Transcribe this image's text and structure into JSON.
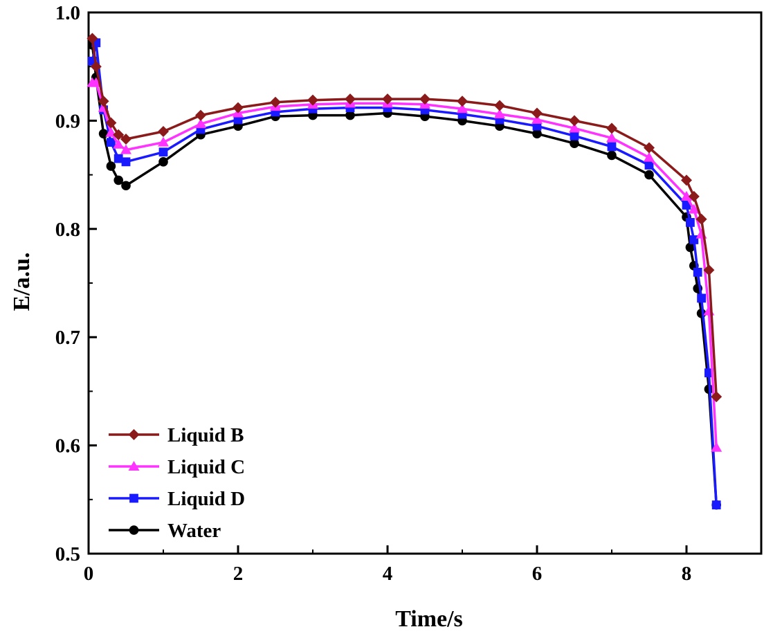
{
  "chart_data": {
    "type": "line",
    "title": "",
    "xlabel": "Time/s",
    "ylabel": "E/a.u.",
    "xlim": [
      0,
      9
    ],
    "ylim": [
      0.5,
      1.0
    ],
    "xticks": [
      0,
      2,
      4,
      6,
      8
    ],
    "yticks": [
      0.5,
      0.6,
      0.7,
      0.8,
      0.9,
      1.0
    ],
    "xtick_labels": [
      "0",
      "2",
      "4",
      "6",
      "8"
    ],
    "ytick_labels": [
      "0.5",
      "0.6",
      "0.7",
      "0.8",
      "0.9",
      "1.0"
    ],
    "grid": false,
    "legend_position": "bottom-left",
    "series": [
      {
        "name": "Liquid B",
        "color": "#8B1A1A",
        "marker": "diamond",
        "x": [
          0.05,
          0.1,
          0.2,
          0.3,
          0.4,
          0.5,
          1.0,
          1.5,
          2.0,
          2.5,
          3.0,
          3.5,
          4.0,
          4.5,
          5.0,
          5.5,
          6.0,
          6.5,
          7.0,
          7.5,
          8.0,
          8.1,
          8.2,
          8.3,
          8.4
        ],
        "y": [
          0.976,
          0.95,
          0.918,
          0.898,
          0.887,
          0.883,
          0.89,
          0.905,
          0.912,
          0.917,
          0.919,
          0.92,
          0.92,
          0.92,
          0.918,
          0.914,
          0.907,
          0.9,
          0.893,
          0.875,
          0.845,
          0.83,
          0.809,
          0.762,
          0.645
        ]
      },
      {
        "name": "Liquid C",
        "color": "#FF33FF",
        "marker": "triangle",
        "x": [
          0.05,
          0.1,
          0.2,
          0.3,
          0.4,
          0.5,
          1.0,
          1.5,
          2.0,
          2.5,
          3.0,
          3.5,
          4.0,
          4.5,
          5.0,
          5.5,
          6.0,
          6.5,
          7.0,
          7.5,
          8.0,
          8.1,
          8.2,
          8.3,
          8.4
        ],
        "y": [
          0.935,
          0.935,
          0.912,
          0.889,
          0.878,
          0.873,
          0.88,
          0.897,
          0.907,
          0.913,
          0.915,
          0.916,
          0.916,
          0.915,
          0.911,
          0.906,
          0.901,
          0.893,
          0.884,
          0.866,
          0.83,
          0.818,
          0.795,
          0.724,
          0.598
        ]
      },
      {
        "name": "Liquid D",
        "color": "#1A1AFF",
        "marker": "square",
        "x": [
          0.05,
          0.1,
          0.2,
          0.3,
          0.4,
          0.5,
          1.0,
          1.5,
          2.0,
          2.5,
          3.0,
          3.5,
          4.0,
          4.5,
          5.0,
          5.5,
          6.0,
          6.5,
          7.0,
          7.5,
          8.0,
          8.05,
          8.1,
          8.15,
          8.2,
          8.3,
          8.4
        ],
        "y": [
          0.955,
          0.972,
          0.91,
          0.88,
          0.865,
          0.862,
          0.871,
          0.892,
          0.901,
          0.908,
          0.911,
          0.912,
          0.912,
          0.91,
          0.906,
          0.901,
          0.895,
          0.886,
          0.876,
          0.859,
          0.822,
          0.806,
          0.79,
          0.76,
          0.736,
          0.667,
          0.545
        ]
      },
      {
        "name": "Water",
        "color": "#000000",
        "marker": "circle",
        "x": [
          0.05,
          0.1,
          0.2,
          0.3,
          0.4,
          0.5,
          1.0,
          1.5,
          2.0,
          2.5,
          3.0,
          3.5,
          4.0,
          4.5,
          5.0,
          5.5,
          6.0,
          6.5,
          7.0,
          7.5,
          8.0,
          8.05,
          8.1,
          8.15,
          8.2,
          8.3,
          8.4
        ],
        "y": [
          0.97,
          0.94,
          0.888,
          0.858,
          0.845,
          0.84,
          0.862,
          0.887,
          0.895,
          0.904,
          0.905,
          0.905,
          0.907,
          0.904,
          0.9,
          0.895,
          0.888,
          0.879,
          0.868,
          0.85,
          0.811,
          0.783,
          0.766,
          0.745,
          0.722,
          0.652,
          0.545
        ]
      }
    ]
  }
}
